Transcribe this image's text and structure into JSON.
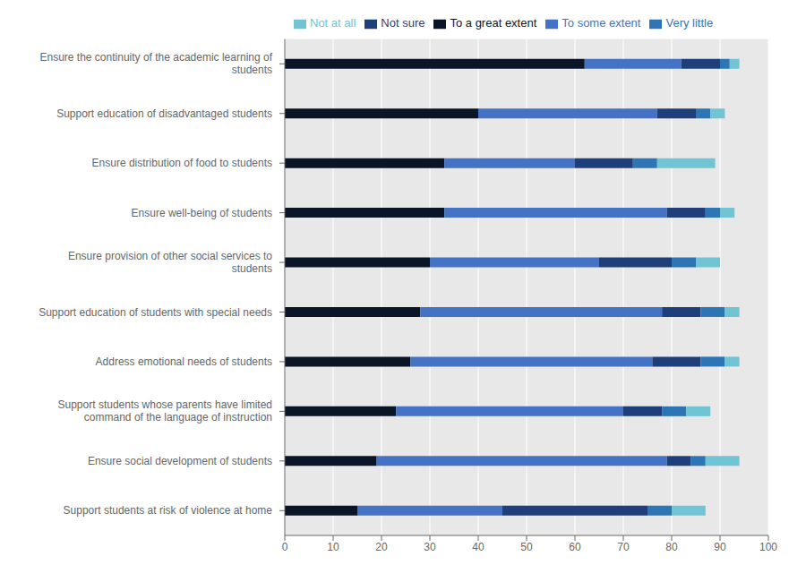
{
  "chart_data": {
    "type": "bar",
    "orientation": "horizontal",
    "stacked": true,
    "grid": true,
    "legend": "top",
    "categories": [
      "Ensure the continuity of the academic learning of\nstudents",
      "Support education of disadvantaged students",
      "Ensure distribution of food to students",
      "Ensure well-being of students",
      "Ensure provision of other social services to\nstudents",
      "Support education of students with special needs",
      "Address emotional needs of students",
      "Support students whose parents have limited\ncommand of the language of instruction",
      "Ensure social development of students",
      "Support students at risk of violence at home"
    ],
    "series": [
      {
        "name": "To a great extent",
        "color": "#0a1628",
        "values": [
          62,
          40,
          33,
          33,
          30,
          28,
          26,
          23,
          19,
          15
        ]
      },
      {
        "name": "To some extent",
        "color": "#4472c4",
        "values": [
          20,
          37,
          27,
          46,
          35,
          50,
          50,
          47,
          60,
          30
        ]
      },
      {
        "name": "Not sure",
        "color": "#1f3f7a",
        "values": [
          8,
          8,
          12,
          8,
          15,
          8,
          10,
          8,
          5,
          30
        ]
      },
      {
        "name": "Very little",
        "color": "#2e75b6",
        "values": [
          2,
          3,
          5,
          3,
          5,
          5,
          5,
          5,
          3,
          5
        ]
      },
      {
        "name": "Not at all",
        "color": "#70c4d4",
        "values": [
          2,
          3,
          12,
          3,
          5,
          3,
          3,
          5,
          7,
          7
        ]
      }
    ],
    "xlim": [
      0,
      100
    ],
    "xticks": [
      0,
      10,
      20,
      30,
      40,
      50,
      60,
      70,
      80,
      90,
      100
    ]
  }
}
